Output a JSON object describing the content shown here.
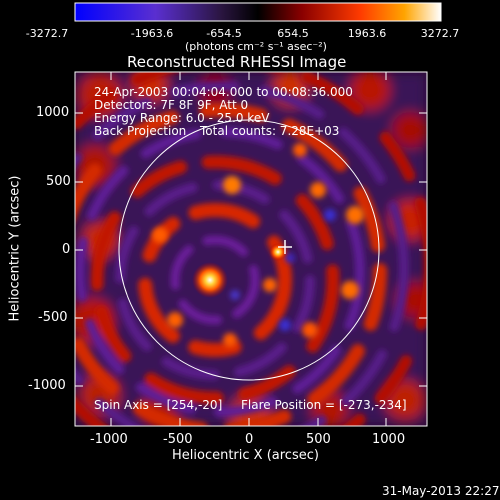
{
  "colorbar": {
    "ticks": [
      "-3272.7",
      "-1963.6",
      "-654.5",
      "654.5",
      "1963.6",
      "3272.7"
    ],
    "units_label": "(photons cm⁻² s⁻¹ asec⁻²)",
    "gradient": [
      "#0000ff",
      "#5a2fd0",
      "#2a1540",
      "#000000",
      "#8a0000",
      "#ff3b00",
      "#ffa400",
      "#ffffff"
    ]
  },
  "title": "Reconstructed RHESSI Image",
  "annotations": {
    "line1": "24-Apr-2003 00:04:04.000 to 00:08:36.000",
    "line2": "Detectors: 7F 8F 9F, Att 0",
    "line3": "Energy Range: 6.0 - 25.0 keV",
    "line4a": "Back Projection",
    "line4b": "Total counts: 7.28E+03",
    "spin_axis": "Spin Axis = [254,-20]",
    "flare_position": "Flare Position = [-273,-234]"
  },
  "axes": {
    "xlabel": "Heliocentric X (arcsec)",
    "ylabel": "Heliocentric Y (arcsec)",
    "xticks": [
      "-1000",
      "-500",
      "0",
      "500",
      "1000"
    ],
    "yticks": [
      "1000",
      "500",
      "0",
      "-500",
      "-1000"
    ]
  },
  "footer_timestamp": "31-May-2013 22:27"
}
